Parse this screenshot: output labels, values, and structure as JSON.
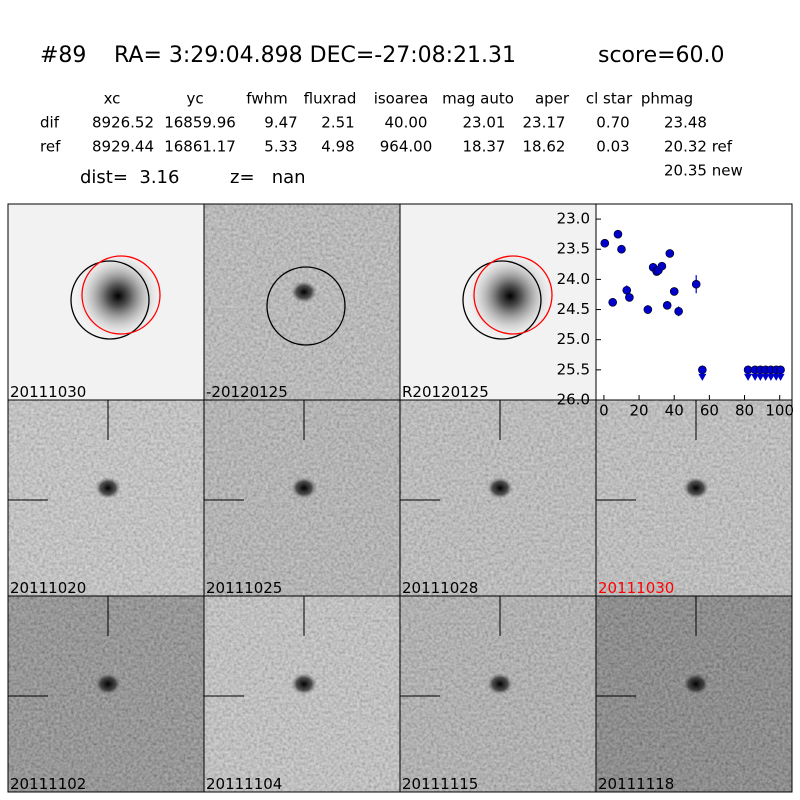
{
  "header": {
    "id": "#89",
    "coords": "RA= 3:29:04.898 DEC=-27:08:21.31",
    "score": "score=60.0"
  },
  "table": {
    "columns": [
      "xc",
      "yc",
      "fwhm",
      "fluxrad",
      "isoarea",
      "mag auto",
      "aper",
      "cl star",
      "phmag"
    ],
    "rows": [
      [
        "dif",
        "8926.52",
        "16859.96",
        "9.47",
        "2.51",
        "40.00",
        "23.01",
        "23.17",
        "0.70",
        "23.48"
      ],
      [
        "ref",
        "8929.44",
        "16861.17",
        "5.33",
        "4.98",
        "964.00",
        "18.37",
        "18.62",
        "0.03",
        "20.32 ref"
      ]
    ],
    "note": "20.35 new"
  },
  "summary": {
    "dist": "dist=  3.16",
    "z": "z=   nan"
  },
  "stamps": [
    {
      "label": "20111030"
    },
    {
      "label": "-20120125"
    },
    {
      "label": "R20120125"
    },
    {
      "label": "20111020"
    },
    {
      "label": "20111025"
    },
    {
      "label": "20111028"
    },
    {
      "label": "20111030",
      "label_color": "red"
    },
    {
      "label": "20111102"
    },
    {
      "label": "20111104"
    },
    {
      "label": "20111115"
    },
    {
      "label": "20111118"
    }
  ],
  "chart_data": {
    "type": "scatter",
    "xlim": [
      -4.5,
      107
    ],
    "xticks": [
      0,
      20,
      40,
      60,
      80,
      100
    ],
    "ylim": [
      26.0,
      22.75
    ],
    "yticks": [
      {
        "value": 23.0,
        "label": "23.0"
      },
      {
        "value": 23.5,
        "label": "23.5"
      },
      {
        "value": 24.0,
        "label": "24.0"
      },
      {
        "value": 24.5,
        "label": "24.5"
      },
      {
        "value": 25.0,
        "label": "25.0"
      },
      {
        "value": 25.5,
        "label": "25.5"
      },
      {
        "value": 26.0,
        "label": "26.0"
      }
    ],
    "series": [
      {
        "marker": "circle",
        "color": "#0000cc",
        "x": [
          0.5,
          5,
          8,
          10,
          13,
          14.5,
          25,
          28,
          30,
          31,
          33,
          36,
          37.5,
          40,
          42.5,
          52.5
        ],
        "values": [
          23.4,
          24.38,
          23.25,
          23.5,
          24.18,
          24.3,
          24.5,
          23.8,
          23.87,
          23.85,
          23.78,
          24.43,
          23.57,
          24.2,
          24.53,
          24.08
        ],
        "errors": [
          0.04,
          0.07,
          0.04,
          0.04,
          0.08,
          0.06,
          0.07,
          0.07,
          0.05,
          0.05,
          0.05,
          0.07,
          0.04,
          0.05,
          0.08,
          0.15
        ]
      },
      {
        "marker": "limit",
        "color": "#0000cc",
        "x": [
          56,
          82,
          86,
          89,
          92,
          95,
          98,
          100.5
        ],
        "values": [
          25.5,
          25.5,
          25.5,
          25.5,
          25.5,
          25.5,
          25.5,
          25.5
        ]
      }
    ]
  }
}
